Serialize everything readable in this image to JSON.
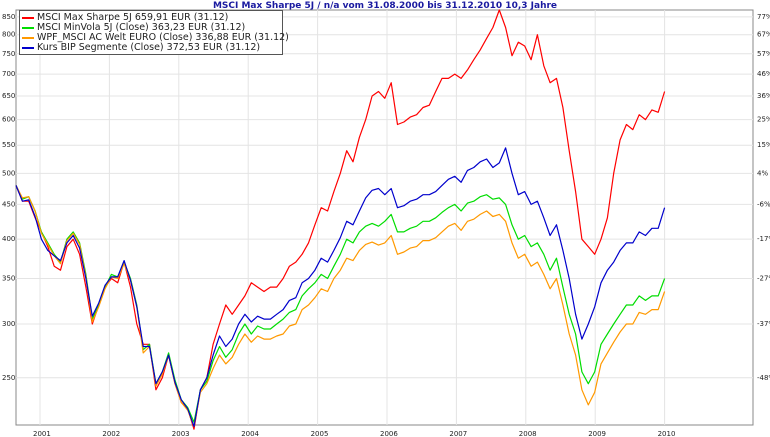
{
  "chart_data": {
    "type": "line",
    "title": "MSCI Max Sharpe 5J / n/a vom 31.08.2000 bis 31.12.2010 10,3 Jahre",
    "x_ticks": [
      "2001",
      "2002",
      "2003",
      "2004",
      "2005",
      "2006",
      "2007",
      "2008",
      "2009",
      "2010"
    ],
    "left_axis_ticks": [
      850,
      800,
      750,
      700,
      650,
      600,
      550,
      500,
      450,
      400,
      350,
      300,
      250
    ],
    "right_axis_ticks": [
      "77%",
      "67%",
      "57%",
      "46%",
      "36%",
      "25%",
      "15%",
      "4%",
      "-6%",
      "-17%",
      "-27%",
      "-37%",
      "-48%"
    ],
    "y_scale": "log",
    "ylim": [
      213,
      870
    ],
    "grid": true,
    "legend_position": "top-left",
    "series": [
      {
        "name": "MSCI Max Sharpe 5J 659,91 EUR (31.12)",
        "color": "#ff0000",
        "values": [
          480,
          455,
          455,
          430,
          410,
          390,
          365,
          360,
          390,
          400,
          380,
          340,
          300,
          320,
          340,
          350,
          345,
          370,
          340,
          300,
          280,
          280,
          240,
          250,
          270,
          245,
          230,
          225,
          210,
          240,
          250,
          280,
          300,
          320,
          310,
          320,
          330,
          345,
          340,
          335,
          340,
          340,
          350,
          365,
          370,
          380,
          395,
          420,
          445,
          440,
          470,
          500,
          540,
          520,
          565,
          600,
          650,
          660,
          645,
          680,
          590,
          595,
          605,
          610,
          625,
          630,
          660,
          690,
          690,
          700,
          690,
          710,
          735,
          760,
          790,
          820,
          870,
          820,
          745,
          780,
          770,
          735,
          800,
          720,
          680,
          690,
          625,
          540,
          470,
          400,
          390,
          380,
          400,
          430,
          500,
          560,
          590,
          580,
          610,
          600,
          620,
          615,
          660
        ]
      },
      {
        "name": "MSCI MinVola 5J (Close) 363,23 EUR (31.12)",
        "color": "#00dd00",
        "values": [
          480,
          458,
          462,
          440,
          410,
          395,
          380,
          370,
          400,
          410,
          395,
          355,
          305,
          320,
          340,
          355,
          352,
          370,
          350,
          320,
          275,
          280,
          245,
          255,
          272,
          248,
          232,
          226,
          215,
          240,
          247,
          265,
          278,
          268,
          275,
          290,
          300,
          290,
          298,
          295,
          295,
          300,
          305,
          312,
          315,
          330,
          338,
          345,
          355,
          350,
          365,
          380,
          400,
          395,
          410,
          418,
          422,
          418,
          425,
          435,
          410,
          410,
          415,
          418,
          425,
          425,
          430,
          438,
          445,
          450,
          440,
          452,
          455,
          462,
          465,
          458,
          460,
          450,
          420,
          400,
          405,
          390,
          395,
          380,
          360,
          375,
          340,
          310,
          290,
          255,
          245,
          255,
          280,
          290,
          300,
          310,
          320,
          320,
          330,
          325,
          330,
          330,
          350
        ]
      },
      {
        "name": "WPF_MSCI AC Welt EURO (Close) 336,88 EUR (31.12)",
        "color": "#ff9900",
        "values": [
          480,
          460,
          462,
          440,
          408,
          393,
          378,
          368,
          398,
          408,
          393,
          352,
          302,
          318,
          338,
          352,
          350,
          368,
          348,
          318,
          272,
          278,
          243,
          253,
          270,
          245,
          230,
          224,
          212,
          238,
          245,
          258,
          270,
          262,
          268,
          280,
          290,
          282,
          288,
          285,
          285,
          288,
          290,
          298,
          300,
          315,
          320,
          328,
          338,
          335,
          350,
          360,
          375,
          372,
          385,
          393,
          396,
          392,
          395,
          405,
          380,
          383,
          388,
          390,
          398,
          398,
          402,
          410,
          418,
          422,
          412,
          425,
          428,
          435,
          440,
          432,
          435,
          425,
          395,
          375,
          380,
          365,
          370,
          355,
          338,
          350,
          320,
          290,
          270,
          240,
          228,
          238,
          262,
          272,
          282,
          292,
          300,
          300,
          312,
          310,
          315,
          315,
          335
        ]
      },
      {
        "name": "Kurs BIP Segmente (Close) 372,53 EUR (31.12)",
        "color": "#0000cc",
        "values": [
          480,
          455,
          457,
          432,
          400,
          385,
          378,
          372,
          395,
          405,
          388,
          350,
          308,
          322,
          342,
          352,
          352,
          372,
          348,
          318,
          278,
          278,
          245,
          255,
          270,
          246,
          232,
          225,
          212,
          240,
          250,
          270,
          288,
          278,
          285,
          300,
          310,
          302,
          308,
          305,
          305,
          310,
          315,
          325,
          328,
          345,
          350,
          360,
          375,
          370,
          385,
          402,
          425,
          420,
          440,
          460,
          472,
          475,
          465,
          475,
          445,
          448,
          455,
          458,
          465,
          465,
          470,
          480,
          490,
          495,
          485,
          505,
          510,
          520,
          525,
          510,
          518,
          545,
          500,
          465,
          470,
          450,
          455,
          430,
          405,
          420,
          385,
          350,
          310,
          285,
          300,
          318,
          345,
          360,
          370,
          385,
          395,
          395,
          410,
          405,
          415,
          415,
          445
        ]
      }
    ]
  }
}
